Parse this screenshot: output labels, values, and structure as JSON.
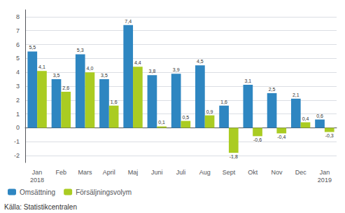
{
  "chart_data": {
    "type": "bar",
    "categories": [
      "Jan\n2018",
      "Feb",
      "Mars",
      "April",
      "Maj",
      "Juni",
      "Juli",
      "Aug",
      "Sept",
      "Okt",
      "Nov",
      "Dec",
      "Jan\n2019"
    ],
    "series": [
      {
        "name": "Omsättning",
        "color": "#2E86C1",
        "values": [
          5.5,
          3.5,
          5.3,
          3.5,
          7.4,
          3.8,
          3.9,
          4.5,
          1.6,
          3.1,
          2.5,
          2.1,
          0.6
        ],
        "value_labels": [
          "5,5",
          "3,5",
          "5,3",
          "3,5",
          "7,4",
          "3,8",
          "3,9",
          "4,5",
          "1,6",
          "3,1",
          "2,5",
          "2,1",
          "0,6"
        ]
      },
      {
        "name": "Försäljningsvolym",
        "color": "#AACC22",
        "values": [
          4.1,
          2.6,
          4.0,
          1.6,
          4.4,
          0.1,
          0.5,
          0.9,
          -1.8,
          -0.6,
          -0.4,
          0.4,
          -0.3
        ],
        "value_labels": [
          "4,1",
          "2,6",
          "4,0",
          "1,6",
          "4,4",
          "0,1",
          "0,5",
          "0,9",
          "-1,8",
          "-0,6",
          "-0,4",
          "0,4",
          "-0,3"
        ]
      }
    ],
    "ylim": [
      -2.5,
      8.5
    ],
    "yticks": [
      -2,
      -1,
      0,
      1,
      2,
      3,
      4,
      5,
      6,
      7,
      8
    ],
    "grid": true,
    "legend": "lower left",
    "data_labels": true,
    "source": "Källa: Statistikcentralen"
  }
}
